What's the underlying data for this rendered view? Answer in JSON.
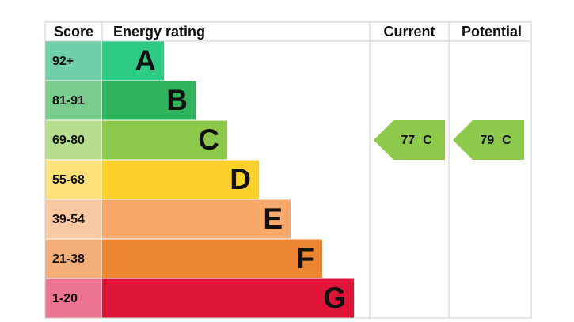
{
  "headers": [
    "Score",
    "Energy rating",
    "Current",
    "Potential"
  ],
  "bands": [
    {
      "score": "92+",
      "letter": "A",
      "color": "#2ecb85",
      "score_color": "#6fcfa6"
    },
    {
      "score": "81-91",
      "letter": "B",
      "color": "#2fb35c",
      "score_color": "#7ccb8e"
    },
    {
      "score": "69-80",
      "letter": "C",
      "color": "#8dc94a",
      "score_color": "#b6dc8e"
    },
    {
      "score": "55-68",
      "letter": "D",
      "color": "#fdd12c",
      "score_color": "#fde27c"
    },
    {
      "score": "39-54",
      "letter": "E",
      "color": "#f6a96b",
      "score_color": "#f8c9a2"
    },
    {
      "score": "21-38",
      "letter": "F",
      "color": "#ec8630",
      "score_color": "#f2ae7a"
    },
    {
      "score": "1-20",
      "letter": "G",
      "color": "#df1439",
      "score_color": "#ee7591"
    }
  ],
  "current": {
    "value": 77,
    "letter": "C"
  },
  "potential": {
    "value": 79,
    "letter": "C"
  }
}
